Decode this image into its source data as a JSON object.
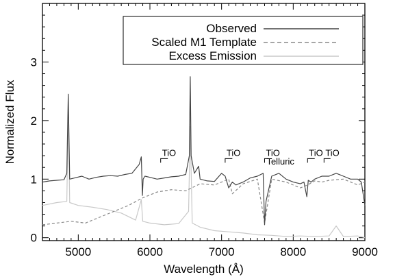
{
  "chart_data": {
    "type": "line",
    "xlabel": "Wavelength (Å)",
    "ylabel": "Normalized Flux",
    "xlim": [
      4500,
      9000
    ],
    "ylim": [
      -0.05,
      4.0
    ],
    "xticks": [
      5000,
      6000,
      7000,
      8000,
      9000
    ],
    "xtick_labels": [
      "5000",
      "6000",
      "7000",
      "8000",
      "9000"
    ],
    "yticks": [
      0,
      1,
      2,
      3
    ],
    "ytick_labels": [
      "0",
      "1",
      "2",
      "3"
    ],
    "grid": false,
    "legend_position": "top-right",
    "legend": [
      {
        "label": "Observed",
        "color": "#444444",
        "dash": "solid"
      },
      {
        "label": "Scaled M1 Template",
        "color": "#888888",
        "dash": "dashed"
      },
      {
        "label": "Excess Emission",
        "color": "#c8c8c8",
        "dash": "solid"
      }
    ],
    "series": [
      {
        "name": "Observed",
        "color": "#444444",
        "dash": "solid",
        "x": [
          4500,
          4600,
          4700,
          4800,
          4840,
          4860,
          4880,
          4950,
          5050,
          5150,
          5250,
          5350,
          5450,
          5550,
          5650,
          5750,
          5850,
          5880,
          5895,
          5905,
          5930,
          6000,
          6100,
          6200,
          6300,
          6400,
          6500,
          6550,
          6563,
          6575,
          6620,
          6680,
          6700,
          6800,
          6900,
          7000,
          7050,
          7100,
          7150,
          7200,
          7300,
          7400,
          7500,
          7580,
          7600,
          7620,
          7700,
          7800,
          7900,
          8000,
          8100,
          8150,
          8190,
          8210,
          8250,
          8300,
          8400,
          8500,
          8600,
          8700,
          8800,
          8850,
          8900,
          8950,
          9000
        ],
        "y": [
          0.95,
          0.97,
          0.98,
          0.99,
          1.1,
          2.45,
          1.0,
          1.02,
          1.05,
          1.0,
          1.03,
          1.05,
          1.06,
          1.05,
          1.08,
          1.1,
          1.25,
          1.38,
          0.72,
          1.0,
          1.05,
          1.03,
          1.0,
          1.02,
          1.04,
          1.05,
          1.08,
          1.4,
          2.75,
          1.4,
          1.1,
          1.22,
          1.0,
          0.97,
          0.96,
          1.1,
          1.05,
          0.85,
          0.95,
          0.9,
          0.95,
          1.02,
          1.05,
          1.1,
          0.22,
          0.62,
          1.05,
          1.1,
          1.0,
          0.95,
          0.92,
          0.95,
          0.7,
          0.98,
          0.95,
          1.0,
          1.05,
          1.05,
          1.1,
          1.05,
          1.0,
          1.0,
          1.0,
          0.95,
          0.55
        ]
      },
      {
        "name": "Scaled M1 Template",
        "color": "#888888",
        "dash": "dashed",
        "x": [
          4500,
          4700,
          4900,
          5100,
          5300,
          5500,
          5700,
          5900,
          6100,
          6300,
          6500,
          6700,
          6900,
          7100,
          7150,
          7300,
          7500,
          7600,
          7700,
          7900,
          8100,
          8200,
          8300,
          8400,
          8500,
          8700,
          8900,
          9000
        ],
        "y": [
          0.22,
          0.25,
          0.28,
          0.25,
          0.35,
          0.45,
          0.55,
          0.68,
          0.78,
          0.82,
          0.8,
          0.92,
          0.9,
          1.0,
          0.75,
          0.92,
          1.0,
          0.25,
          1.0,
          0.95,
          0.85,
          0.9,
          0.97,
          0.95,
          0.98,
          1.0,
          0.9,
          0.95
        ]
      },
      {
        "name": "Excess Emission",
        "color": "#c8c8c8",
        "dash": "solid",
        "x": [
          4500,
          4700,
          4840,
          4860,
          4880,
          5000,
          5200,
          5400,
          5600,
          5800,
          5880,
          5900,
          6000,
          6200,
          6400,
          6540,
          6563,
          6590,
          6700,
          6900,
          7100,
          7300,
          7500,
          7700,
          7900,
          8100,
          8300,
          8500,
          8600,
          8700,
          8900,
          9000
        ],
        "y": [
          0.55,
          0.6,
          0.62,
          2.2,
          0.6,
          0.55,
          0.52,
          0.48,
          0.42,
          0.3,
          0.65,
          0.28,
          0.25,
          0.22,
          0.24,
          0.45,
          1.9,
          0.25,
          0.18,
          0.12,
          0.1,
          0.08,
          0.05,
          0.04,
          0.02,
          0.03,
          0.02,
          0.03,
          0.2,
          0.02,
          0.03,
          0.0
        ]
      }
    ],
    "annotations": [
      {
        "text": "TiO",
        "x_start": 6150,
        "x_end": 6250,
        "y": 1.35
      },
      {
        "text": "TiO",
        "x_start": 7050,
        "x_end": 7150,
        "y": 1.35
      },
      {
        "text": "TiO",
        "x_start": 7600,
        "x_end": 7650,
        "y": 1.35
      },
      {
        "text": "Telluric",
        "x_start": 7600,
        "x_end": 7600,
        "y": 1.2
      },
      {
        "text": "TiO",
        "x_start": 8200,
        "x_end": 8300,
        "y": 1.35
      },
      {
        "text": "TiO",
        "x_start": 8430,
        "x_end": 8520,
        "y": 1.35
      }
    ]
  }
}
